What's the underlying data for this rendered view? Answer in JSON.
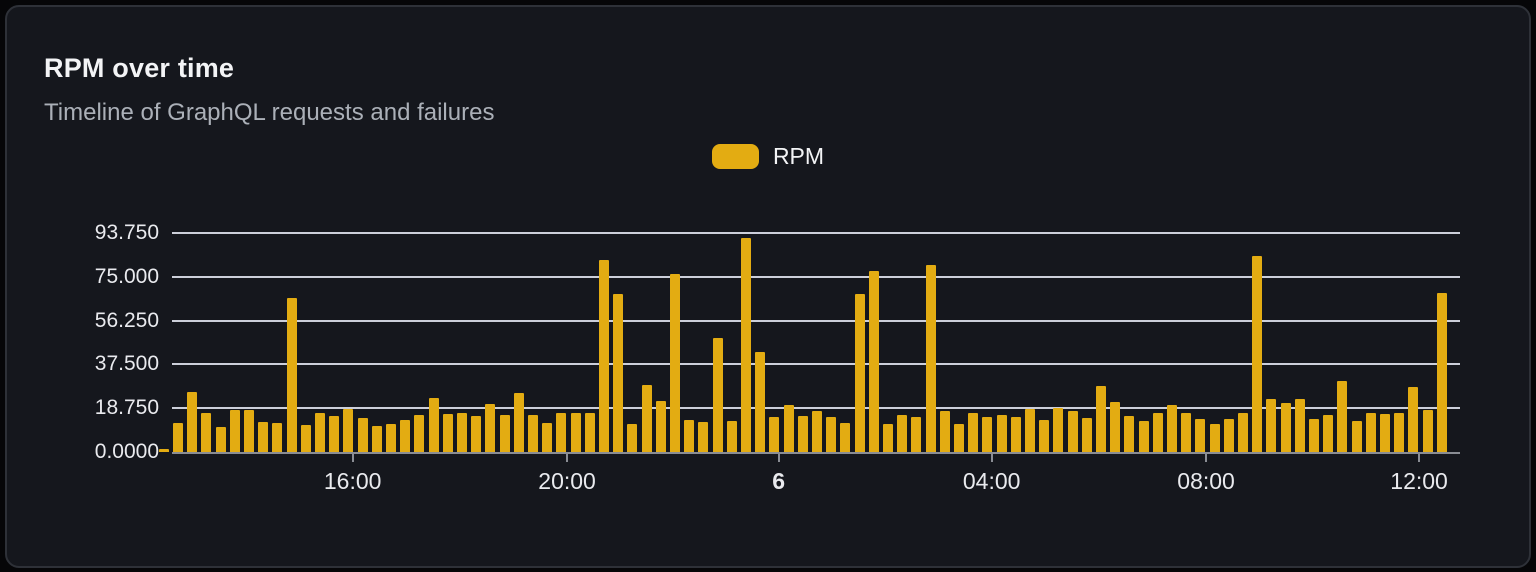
{
  "header": {
    "title": "RPM over time",
    "subtitle": "Timeline of GraphQL requests and failures"
  },
  "legend": {
    "items": [
      {
        "label": "RPM",
        "color": "#E3AC12"
      }
    ]
  },
  "colors": {
    "page_background": "#060608",
    "card_background": "#15171D",
    "card_border": "#2E3138",
    "grid_line": "#DCE0EA",
    "axis_line": "#8A8D94",
    "text_primary": "#F3F4F6",
    "text_secondary": "#ABB0B8",
    "axis_text": "#E9EAEE",
    "bar": "#E3AC12"
  },
  "chart_data": {
    "type": "bar",
    "title": "RPM over time",
    "subtitle": "Timeline of GraphQL requests and failures",
    "series_name": "RPM",
    "xlabel": "",
    "ylabel": "",
    "ylim": [
      0,
      93.75
    ],
    "grid": "horizontal",
    "legend_position": "top-center",
    "y_ticks": [
      {
        "label": "93.750",
        "value": 93.75
      },
      {
        "label": "75.000",
        "value": 75.0
      },
      {
        "label": "56.250",
        "value": 56.25
      },
      {
        "label": "37.500",
        "value": 37.5
      },
      {
        "label": "18.750",
        "value": 18.75
      },
      {
        "label": "0.0000",
        "value": 0.0
      }
    ],
    "x_ticks": [
      {
        "label": "16:00",
        "index": 13.3,
        "bold": false
      },
      {
        "label": "20:00",
        "index": 28.4,
        "bold": false
      },
      {
        "label": "6",
        "index": 43.3,
        "bold": true
      },
      {
        "label": "04:00",
        "index": 58.3,
        "bold": false
      },
      {
        "label": "08:00",
        "index": 73.4,
        "bold": false
      },
      {
        "label": "12:00",
        "index": 88.4,
        "bold": false
      }
    ],
    "values": [
      1.5,
      12.6,
      25.5,
      16.9,
      10.8,
      17.9,
      17.9,
      12.8,
      12.3,
      65.8,
      11.4,
      16.6,
      15.4,
      18.6,
      14.4,
      11.3,
      12.0,
      13.7,
      15.9,
      23.1,
      16.2,
      16.6,
      15.4,
      20.4,
      15.9,
      25.4,
      15.9,
      12.6,
      16.9,
      16.9,
      16.9,
      82.0,
      67.6,
      12.1,
      28.5,
      21.7,
      76.4,
      13.9,
      12.9,
      48.6,
      13.2,
      91.5,
      43.0,
      15.2,
      20.0,
      15.5,
      17.5,
      15.2,
      12.4,
      67.7,
      77.6,
      11.8,
      15.9,
      14.9,
      80.0,
      17.5,
      11.8,
      16.5,
      15.2,
      15.8,
      14.9,
      18.3,
      13.9,
      19.0,
      17.5,
      14.5,
      28.2,
      21.3,
      15.5,
      13.1,
      16.7,
      20.3,
      16.7,
      14.2,
      12.1,
      14.3,
      16.5,
      83.8,
      22.8,
      21.0,
      22.8,
      14.2,
      15.9,
      30.2,
      13.1,
      16.8,
      16.1,
      16.5,
      27.9,
      18.1,
      68.2
    ]
  }
}
